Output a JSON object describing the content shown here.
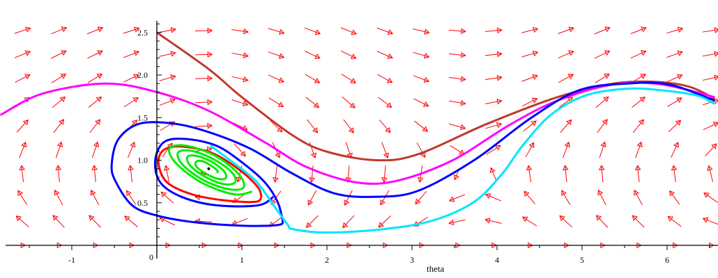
{
  "chart_data": {
    "type": "line",
    "subtype": "phase-portrait-direction-field",
    "xlabel": "theta",
    "ylabel": "",
    "xlim": [
      -1.84,
      6.56
    ],
    "ylim": [
      0,
      2.65
    ],
    "x_ticks": [
      "-1",
      "1",
      "2",
      "3",
      "4",
      "5",
      "6"
    ],
    "x_tick_values": [
      -1,
      1,
      2,
      3,
      4,
      5,
      6
    ],
    "y_ticks": [
      "0.5",
      "1.0",
      "1.5",
      "2.0",
      "2.5"
    ],
    "y_tick_values": [
      0.5,
      1.0,
      1.5,
      2.0,
      2.5
    ],
    "origin_label": "0",
    "grid": false,
    "field": {
      "color": "#ff0000",
      "theta_start": -1.58,
      "theta_step": 0.426,
      "columns": 20,
      "y_start": 0,
      "y_step": 0.28,
      "rows": 10
    },
    "equilibrium": {
      "theta": 0.61,
      "y": 0.9,
      "color": "#000000"
    },
    "series": [
      {
        "color": "#c0392b",
        "points": [
          [
            0,
            2.5
          ],
          [
            0.61,
            2.07
          ],
          [
            1.0,
            1.74
          ],
          [
            1.6,
            1.29
          ],
          [
            2.0,
            1.1
          ],
          [
            2.58,
            1.0
          ],
          [
            3.07,
            1.07
          ],
          [
            3.89,
            1.43
          ],
          [
            4.71,
            1.74
          ],
          [
            5.37,
            1.9
          ],
          [
            5.86,
            1.92
          ],
          [
            6.27,
            1.86
          ],
          [
            6.56,
            1.72
          ]
        ]
      },
      {
        "color": "#ff00ff",
        "points": [
          [
            -1.84,
            1.53
          ],
          [
            -1.35,
            1.78
          ],
          [
            -0.61,
            1.9
          ],
          [
            0,
            1.8
          ],
          [
            0.61,
            1.58
          ],
          [
            1.27,
            1.21
          ],
          [
            1.76,
            0.92
          ],
          [
            2.34,
            0.74
          ],
          [
            2.83,
            0.76
          ],
          [
            3.48,
            1.0
          ],
          [
            4.14,
            1.41
          ],
          [
            4.71,
            1.7
          ],
          [
            5.37,
            1.89
          ],
          [
            5.94,
            1.89
          ],
          [
            6.56,
            1.74
          ]
        ]
      },
      {
        "color": "#0000ff",
        "points": [
          [
            1.48,
            0.29
          ],
          [
            1.43,
            0.24
          ],
          [
            1.02,
            0.23
          ],
          [
            0.45,
            0.27
          ],
          [
            0,
            0.35
          ],
          [
            -0.29,
            0.47
          ],
          [
            -0.49,
            0.76
          ],
          [
            -0.53,
            0.96
          ],
          [
            -0.45,
            1.25
          ],
          [
            -0.2,
            1.43
          ],
          [
            0.2,
            1.43
          ],
          [
            0.61,
            1.33
          ],
          [
            1.11,
            1.13
          ],
          [
            1.6,
            0.84
          ],
          [
            2.09,
            0.61
          ],
          [
            2.58,
            0.57
          ],
          [
            3.07,
            0.64
          ],
          [
            3.73,
            1.0
          ],
          [
            4.39,
            1.49
          ],
          [
            4.96,
            1.82
          ],
          [
            5.53,
            1.9
          ],
          [
            6.02,
            1.89
          ],
          [
            6.56,
            1.7
          ]
        ]
      },
      {
        "color": "#0000ff",
        "points": [
          [
            1.48,
            0.29
          ],
          [
            1.42,
            0.51
          ],
          [
            1.27,
            0.74
          ],
          [
            1.02,
            0.96
          ],
          [
            0.7,
            1.17
          ],
          [
            0.33,
            1.25
          ],
          [
            0.08,
            1.21
          ],
          [
            -0.02,
            0.99
          ],
          [
            0.04,
            0.74
          ],
          [
            0.29,
            0.57
          ],
          [
            0.7,
            0.47
          ],
          [
            1.19,
            0.47
          ],
          [
            1.37,
            0.57
          ]
        ]
      },
      {
        "color": "#ff0000",
        "points": [
          [
            1.23,
            0.56
          ],
          [
            1.19,
            0.68
          ],
          [
            0.98,
            0.88
          ],
          [
            0.66,
            1.08
          ],
          [
            0.3,
            1.16
          ],
          [
            0.08,
            1.12
          ],
          [
            0.02,
            0.96
          ],
          [
            0.12,
            0.74
          ],
          [
            0.41,
            0.6
          ],
          [
            0.78,
            0.53
          ],
          [
            1.15,
            0.51
          ],
          [
            1.23,
            0.56
          ]
        ]
      },
      {
        "color": "#00ee00",
        "points": [
          [
            1.12,
            0.63
          ],
          [
            0.9,
            0.6
          ],
          [
            0.52,
            0.74
          ],
          [
            0.22,
            0.97
          ],
          [
            0.15,
            1.14
          ],
          [
            0.35,
            1.17
          ],
          [
            0.69,
            1.05
          ],
          [
            0.96,
            0.84
          ],
          [
            1.02,
            0.68
          ],
          [
            0.84,
            0.66
          ],
          [
            0.54,
            0.77
          ],
          [
            0.3,
            0.95
          ],
          [
            0.25,
            1.09
          ],
          [
            0.41,
            1.11
          ],
          [
            0.67,
            1.01
          ],
          [
            0.88,
            0.86
          ],
          [
            0.92,
            0.74
          ],
          [
            0.78,
            0.72
          ],
          [
            0.56,
            0.81
          ],
          [
            0.39,
            0.94
          ],
          [
            0.36,
            1.04
          ],
          [
            0.47,
            1.05
          ],
          [
            0.65,
            0.98
          ],
          [
            0.79,
            0.87
          ],
          [
            0.81,
            0.79
          ],
          [
            0.72,
            0.78
          ],
          [
            0.58,
            0.84
          ],
          [
            0.47,
            0.92
          ],
          [
            0.46,
            0.98
          ],
          [
            0.53,
            0.99
          ],
          [
            0.63,
            0.94
          ],
          [
            0.71,
            0.88
          ],
          [
            0.71,
            0.85
          ]
        ]
      },
      {
        "color": "#00e5ff",
        "points": [
          [
            0.63,
            1.17
          ],
          [
            0.86,
            1.0
          ],
          [
            1.16,
            0.76
          ],
          [
            1.38,
            0.46
          ],
          [
            1.54,
            0.24
          ],
          [
            1.6,
            0.19
          ],
          [
            2.0,
            0.15
          ],
          [
            2.66,
            0.19
          ],
          [
            3.24,
            0.29
          ],
          [
            3.73,
            0.51
          ],
          [
            4.06,
            0.84
          ],
          [
            4.3,
            1.17
          ],
          [
            4.63,
            1.53
          ],
          [
            5.04,
            1.76
          ],
          [
            5.53,
            1.84
          ],
          [
            5.94,
            1.82
          ],
          [
            6.35,
            1.76
          ],
          [
            6.56,
            1.66
          ]
        ]
      }
    ]
  }
}
